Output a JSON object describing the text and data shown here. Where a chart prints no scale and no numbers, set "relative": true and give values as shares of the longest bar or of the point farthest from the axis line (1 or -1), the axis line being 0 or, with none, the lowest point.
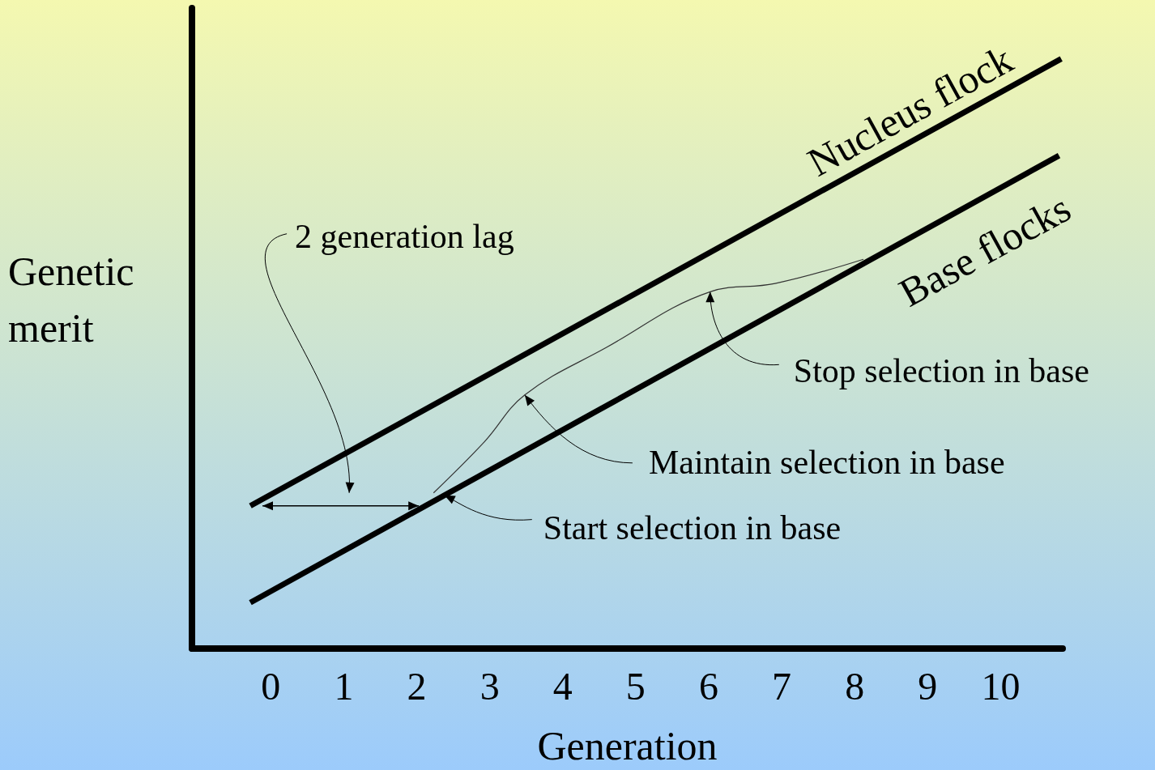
{
  "chart_data": {
    "type": "line",
    "relative": true,
    "xlabel": "Generation",
    "ylabel": "Genetic merit",
    "xlim": [
      -1.08,
      10.85
    ],
    "xticks": [
      0,
      1,
      2,
      3,
      4,
      5,
      6,
      7,
      8,
      9,
      10
    ],
    "grid": false,
    "legend": false,
    "marker": "none",
    "line_style": "solid",
    "series": [
      {
        "name": "Nucleus flock",
        "color": "#000000",
        "x": [
          -0.28,
          10.83
        ],
        "values": [
          0.242,
          1
        ]
      },
      {
        "name": "Base flocks",
        "color": "#000000",
        "x": [
          -0.28,
          10.8
        ],
        "values": [
          0.078,
          0.836
        ]
      },
      {
        "color": "#333333",
        "x": [
          2.23,
          2.93,
          3.48,
          4.59,
          6.02,
          6.91,
          8.12
        ],
        "values": [
          0.264,
          0.351,
          0.43,
          0.51,
          0.605,
          0.619,
          0.66
        ]
      }
    ],
    "annotations": [
      "2 generation lag",
      {
        "text": "Stop selection in base",
        "x": 6.02,
        "y": 0.605
      },
      {
        "text": "Maintain selection in base",
        "x": 3.48,
        "y": 0.43
      },
      {
        "text": "Start selection in base",
        "x": 2.38,
        "y": 0.26
      }
    ]
  }
}
